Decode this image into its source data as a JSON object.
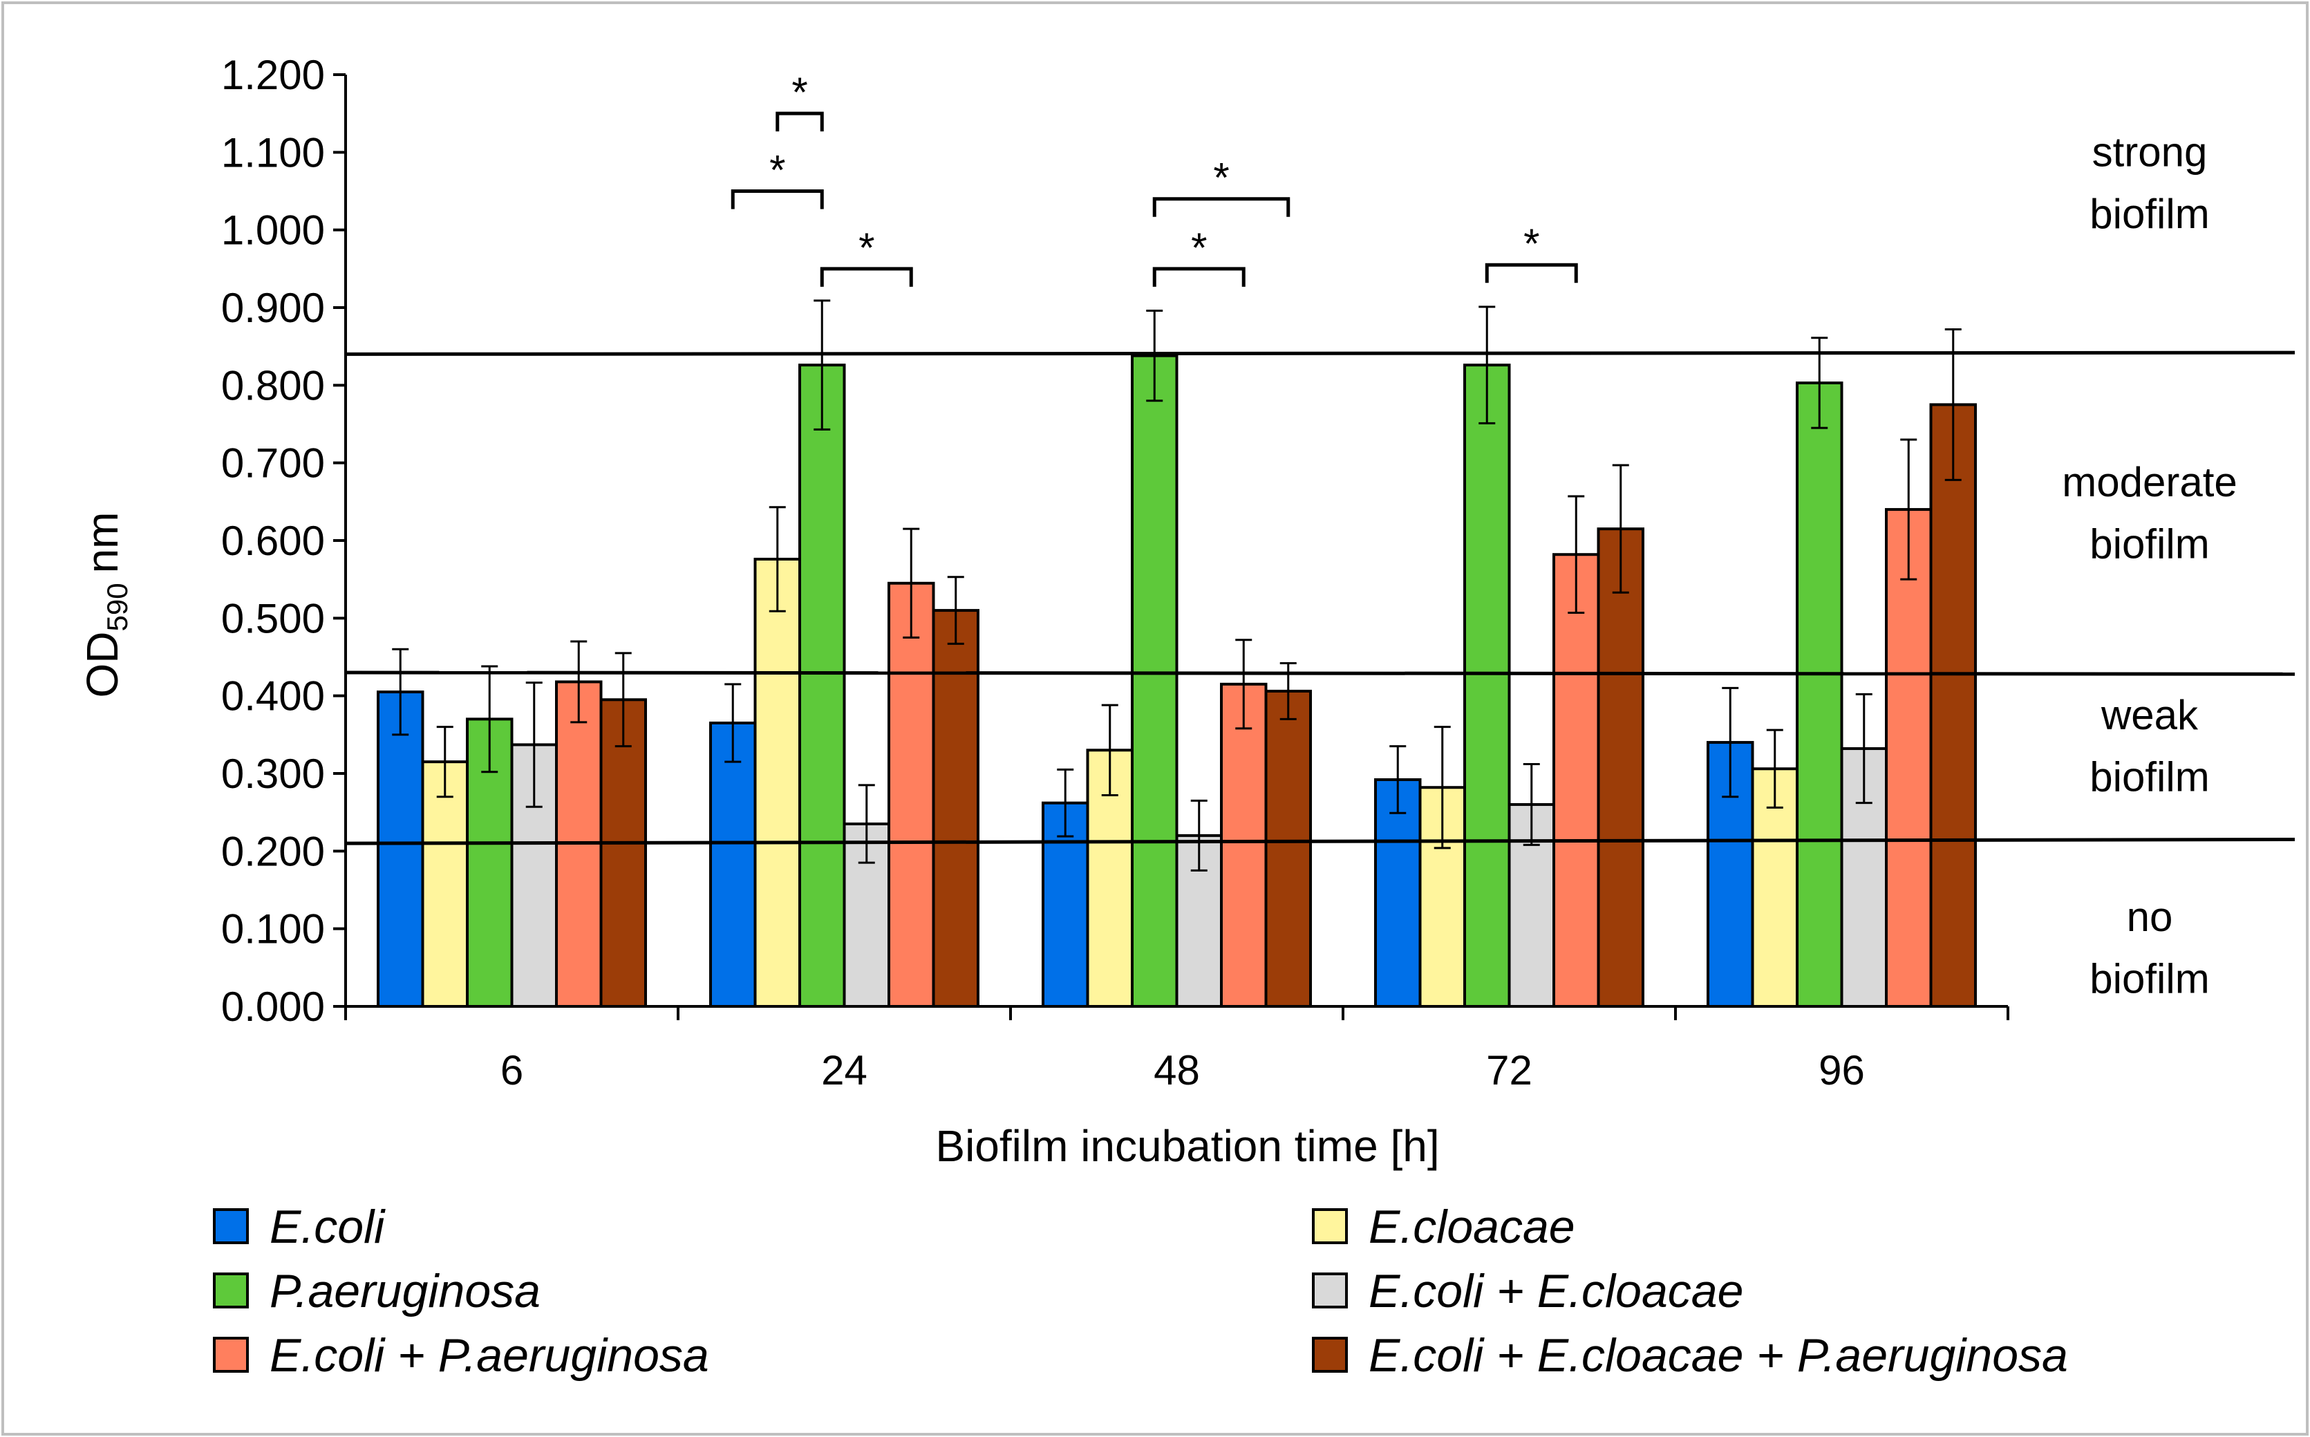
{
  "chart_data": {
    "type": "bar",
    "title": "",
    "xlabel": "Biofilm incubation time [h]",
    "ylabel_main": "OD",
    "ylabel_sub": "590",
    "ylabel_unit": "nm",
    "ylim": [
      0,
      1.2
    ],
    "yticks": [
      {
        "value": 0.0,
        "label": "0.000"
      },
      {
        "value": 0.1,
        "label": "0.100"
      },
      {
        "value": 0.2,
        "label": "0.200"
      },
      {
        "value": 0.3,
        "label": "0.300"
      },
      {
        "value": 0.4,
        "label": "0.400"
      },
      {
        "value": 0.5,
        "label": "0.500"
      },
      {
        "value": 0.6,
        "label": "0.600"
      },
      {
        "value": 0.7,
        "label": "0.700"
      },
      {
        "value": 0.8,
        "label": "0.800"
      },
      {
        "value": 0.9,
        "label": "0.900"
      },
      {
        "value": 1.0,
        "label": "1.000"
      },
      {
        "value": 1.1,
        "label": "1.100"
      },
      {
        "value": 1.2,
        "label": "1.200"
      }
    ],
    "categories": [
      "6",
      "24",
      "48",
      "72",
      "96"
    ],
    "series": [
      {
        "name": "E.coli",
        "color": "#0070e8",
        "values": [
          0.405,
          0.365,
          0.262,
          0.292,
          0.34
        ],
        "errors": [
          0.055,
          0.05,
          0.043,
          0.043,
          0.07
        ]
      },
      {
        "name": "E.cloacae",
        "color": "#fff59d",
        "values": [
          0.315,
          0.576,
          0.33,
          0.282,
          0.306
        ],
        "errors": [
          0.045,
          0.067,
          0.058,
          0.078,
          0.05
        ]
      },
      {
        "name": "P.aeruginosa",
        "color": "#5ec93a",
        "values": [
          0.37,
          0.826,
          0.838,
          0.826,
          0.803
        ],
        "errors": [
          0.068,
          0.083,
          0.058,
          0.075,
          0.058
        ]
      },
      {
        "name": "E.coli + E.cloacae",
        "color": "#d9d9d9",
        "values": [
          0.337,
          0.235,
          0.22,
          0.26,
          0.332
        ],
        "errors": [
          0.08,
          0.05,
          0.045,
          0.052,
          0.07
        ]
      },
      {
        "name": "E.coli + P.aeruginosa",
        "color": "#ff7f5e",
        "values": [
          0.418,
          0.545,
          0.415,
          0.582,
          0.64
        ],
        "errors": [
          0.052,
          0.07,
          0.057,
          0.075,
          0.09
        ]
      },
      {
        "name": "E.coli + E.cloacae + P.aeruginosa",
        "color": "#9c3d08",
        "values": [
          0.395,
          0.51,
          0.406,
          0.615,
          0.775
        ],
        "errors": [
          0.06,
          0.043,
          0.036,
          0.082,
          0.097
        ]
      }
    ],
    "thresholds": [
      {
        "name": "strong",
        "y_start": 0.84,
        "y_end": 0.842
      },
      {
        "name": "moderate",
        "y_start": 0.43,
        "y_end": 0.428
      },
      {
        "name": "weak",
        "y_start": 0.21,
        "y_end": 0.215
      }
    ],
    "zones": [
      {
        "line1": "strong",
        "line2": "biofilm",
        "y1": 1.1,
        "y2": 1.02
      },
      {
        "line1": "moderate",
        "line2": "biofilm",
        "y1": 0.675,
        "y2": 0.595
      },
      {
        "line1": "weak",
        "line2": "biofilm",
        "y1": 0.375,
        "y2": 0.295
      },
      {
        "line1": "no",
        "line2": "biofilm",
        "y1": 0.115,
        "y2": 0.035
      }
    ],
    "significance": [
      {
        "group": 1,
        "from": 1,
        "to": 2,
        "y": 1.15,
        "label": "*"
      },
      {
        "group": 1,
        "from": 0,
        "to": 2,
        "y": 1.05,
        "label": "*"
      },
      {
        "group": 1,
        "from": 2,
        "to": 4,
        "y": 0.95,
        "label": "*"
      },
      {
        "group": 2,
        "from": 2,
        "to": 5,
        "y": 1.04,
        "label": "*"
      },
      {
        "group": 2,
        "from": 2,
        "to": 4,
        "y": 0.95,
        "label": "*"
      },
      {
        "group": 3,
        "from": 2,
        "to": 4,
        "y": 0.955,
        "label": "*"
      }
    ],
    "legend_position": "bottom"
  }
}
